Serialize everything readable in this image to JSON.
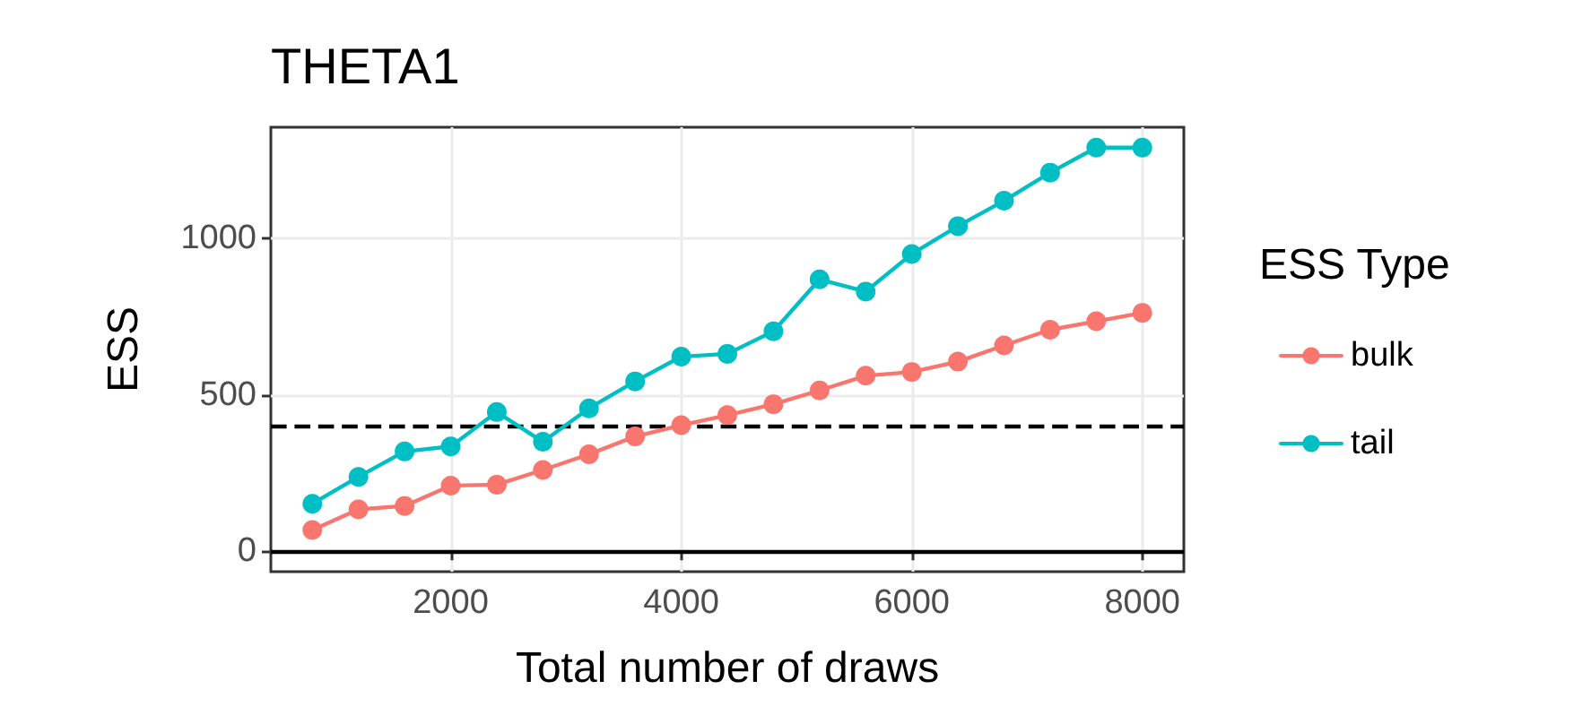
{
  "chart_data": {
    "type": "line",
    "title": "THETA1",
    "xlabel": "Total number of draws",
    "ylabel": "ESS",
    "legend_title": "ESS Type",
    "x": [
      800,
      1200,
      1600,
      2000,
      2400,
      2800,
      3200,
      3600,
      4000,
      4400,
      4800,
      5200,
      5600,
      6000,
      6400,
      6800,
      7200,
      7600,
      8000
    ],
    "series": [
      {
        "name": "bulk",
        "color": "#f8766d",
        "values": [
          68,
          134,
          145,
          210,
          213,
          260,
          310,
          367,
          403,
          435,
          470,
          514,
          561,
          573,
          606,
          658,
          708,
          735,
          762
        ]
      },
      {
        "name": "tail",
        "color": "#00bfc4",
        "values": [
          152,
          238,
          319,
          335,
          445,
          350,
          457,
          543,
          622,
          631,
          703,
          869,
          830,
          950,
          1039,
          1120,
          1210,
          1290,
          1290
        ]
      }
    ],
    "xlim": [
      440,
      8360
    ],
    "xticks": [
      2000,
      4000,
      6000,
      8000
    ],
    "ylim": [
      -65,
      1355
    ],
    "yticks": [
      0,
      500,
      1000
    ],
    "ref_lines": [
      {
        "axis": "y",
        "value": 400,
        "line_style": "dashed",
        "color": "#000000"
      },
      {
        "axis": "y",
        "value": 0,
        "line_style": "solid",
        "color": "#000000"
      }
    ],
    "grid": true,
    "legend": "right",
    "marker": "circle",
    "line_style": "solid"
  }
}
